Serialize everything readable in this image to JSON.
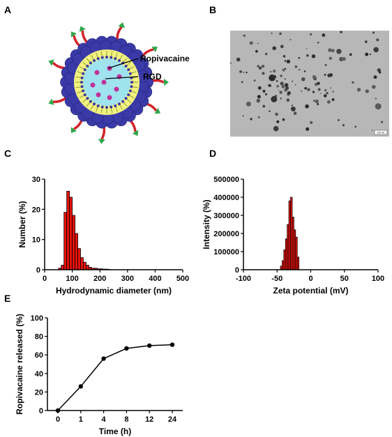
{
  "panels": {
    "a": "A",
    "b": "B",
    "c": "C",
    "d": "D",
    "e": "E"
  },
  "schematic": {
    "label_drug": "Ropivacaine",
    "label_peptide": "RGD",
    "colors": {
      "shell": "#3a3aa8",
      "core": "#9fe3ef",
      "drug": "#c0329a",
      "chain": "#d2232a",
      "tip": "#2ea84a"
    }
  },
  "tem": {
    "scale_bar": "200 nm"
  },
  "chart_data": [
    {
      "id": "C",
      "type": "bar",
      "title": "",
      "xlabel": "Hydrodynamic diameter (nm)",
      "ylabel": "Number (%)",
      "xlim": [
        0,
        500
      ],
      "ylim": [
        0,
        30
      ],
      "xticks": [
        0,
        100,
        200,
        300,
        400,
        500
      ],
      "yticks": [
        0,
        10,
        20,
        30
      ],
      "bin_width": 10,
      "bins": [
        50,
        60,
        70,
        80,
        90,
        100,
        110,
        120,
        130,
        140,
        150,
        160,
        170,
        180,
        190,
        200,
        210,
        220,
        230
      ],
      "values": [
        0.5,
        1.5,
        19,
        26,
        24,
        18,
        12,
        7,
        4,
        2.5,
        1.5,
        0.8,
        0.5,
        0.5,
        0.3,
        0.3,
        0.2,
        0.2,
        0.1
      ],
      "color": "#e8130c"
    },
    {
      "id": "D",
      "type": "bar",
      "title": "",
      "xlabel": "Zeta potential (mV)",
      "ylabel": "Intensity (%)",
      "xlim": [
        -100,
        100
      ],
      "ylim": [
        0,
        500000
      ],
      "xticks": [
        -100,
        -50,
        0,
        50,
        100
      ],
      "yticks": [
        0,
        100000,
        200000,
        300000,
        400000,
        500000
      ],
      "bin_width": 2.5,
      "bins": [
        -45,
        -42.5,
        -40,
        -37.5,
        -35,
        -32.5,
        -30,
        -27.5,
        -25,
        -22.5,
        -20
      ],
      "values": [
        20000,
        50000,
        110000,
        170000,
        250000,
        380000,
        400000,
        290000,
        220000,
        180000,
        70000
      ],
      "color": "#e8130c"
    },
    {
      "id": "E",
      "type": "line",
      "title": "",
      "xlabel": "Time (h)",
      "ylabel": "Ropivacaine released (%)",
      "categories": [
        "0",
        "1",
        "4",
        "8",
        "12",
        "24"
      ],
      "values": [
        0,
        26,
        56,
        67,
        70,
        71
      ],
      "ylim": [
        0,
        100
      ],
      "yticks": [
        0,
        20,
        40,
        60,
        80,
        100
      ],
      "color": "#000000"
    }
  ]
}
